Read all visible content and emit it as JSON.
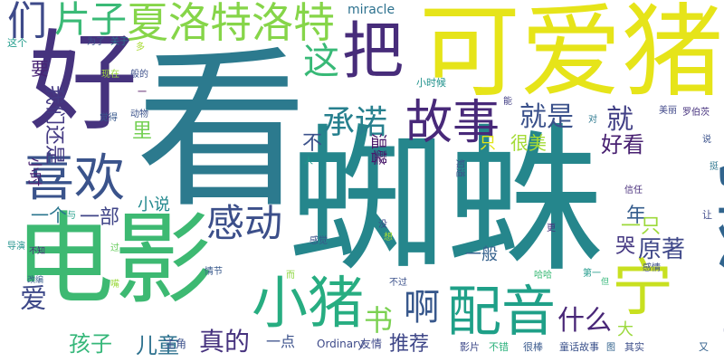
{
  "words": [
    {
      "text": "看",
      "color": "#2c7a8e"
    },
    {
      "text": "蜘蛛",
      "color": "#25868c"
    },
    {
      "text": "电影",
      "color": "#3db972"
    },
    {
      "text": "好",
      "color": "#46337e"
    },
    {
      "text": "可爱猪",
      "color": "#e6e419"
    },
    {
      "text": "时候",
      "color": "#31648d"
    },
    {
      "text": "把",
      "color": "#472c7a"
    },
    {
      "text": "宁",
      "color": "#c8e020"
    },
    {
      "text": "童话",
      "color": "#3d4f8a"
    },
    {
      "text": "小猪",
      "color": "#27ad81"
    },
    {
      "text": "配音",
      "color": "#1fa088"
    },
    {
      "text": "喜欢",
      "color": "#3a538b"
    },
    {
      "text": "故事",
      "color": "#482979"
    },
    {
      "text": "夏洛特洛特",
      "color": "#86d549"
    },
    {
      "text": "感动",
      "color": "#3c4f8a"
    },
    {
      "text": "啊",
      "color": "#38588c"
    },
    {
      "text": "承诺",
      "color": "#27808e"
    },
    {
      "text": "们",
      "color": "#3e4a89"
    },
    {
      "text": "片子",
      "color": "#3aba76"
    },
    {
      "text": "这",
      "color": "#38b977"
    },
    {
      "text": "就是",
      "color": "#3b518b"
    },
    {
      "text": "就",
      "color": "#424086"
    },
    {
      "text": "书",
      "color": "#7ad151"
    },
    {
      "text": "什么",
      "color": "#482677"
    },
    {
      "text": "爱",
      "color": "#3e4989"
    },
    {
      "text": "好看",
      "color": "#482071"
    },
    {
      "text": "原著",
      "color": "#3f4889"
    },
    {
      "text": "真的",
      "color": "#46327e"
    },
    {
      "text": "孩子",
      "color": "#35b779"
    },
    {
      "text": "儿童",
      "color": "#2d718e"
    },
    {
      "text": "一部",
      "color": "#404588"
    },
    {
      "text": "里",
      "color": "#75d054"
    },
    {
      "text": "年",
      "color": "#365d8d"
    },
    {
      "text": "小说",
      "color": "#23898e"
    },
    {
      "text": "我们还是",
      "color": "#443a83"
    },
    {
      "text": "一只",
      "color": "#9dd93b"
    },
    {
      "text": "哭",
      "color": "#453882"
    },
    {
      "text": "推荐",
      "color": "#3f4788"
    },
    {
      "text": "一般",
      "color": "#34618d"
    },
    {
      "text": "不",
      "color": "#3b528b"
    },
    {
      "text": "温馨",
      "color": "#481769"
    },
    {
      "text": "很美",
      "color": "#a5db36"
    },
    {
      "text": "要",
      "color": "#482374"
    },
    {
      "text": "一个",
      "color": "#2a768e"
    },
    {
      "text": "小时",
      "color": "#481f70"
    },
    {
      "text": "一点",
      "color": "#3b518b"
    },
    {
      "text": "大",
      "color": "#9bd93c"
    },
    {
      "text": "只",
      "color": "#e2e418"
    },
    {
      "text": "miracle",
      "color": "#2c718e"
    },
    {
      "text": "Ordinary",
      "color": "#3e4a89"
    },
    {
      "text": "友情",
      "color": "#3e4989"
    },
    {
      "text": "主角",
      "color": "#3c508b"
    },
    {
      "text": "影片",
      "color": "#3e4a89"
    },
    {
      "text": "不错",
      "color": "#2db27d"
    },
    {
      "text": "很棒",
      "color": "#38588c"
    },
    {
      "text": "童话故事",
      "color": "#3b528b"
    },
    {
      "text": "其实",
      "color": "#3d4e8a"
    },
    {
      "text": "又",
      "color": "#34618d"
    },
    {
      "text": "这个",
      "color": "#1e9b8a"
    },
    {
      "text": "为了",
      "color": "#3b518b"
    },
    {
      "text": "关于",
      "color": "#2d708e"
    },
    {
      "text": "多",
      "color": "#a8db34"
    },
    {
      "text": "现在",
      "color": "#9dd93b"
    },
    {
      "text": "般的",
      "color": "#3c4f8a"
    },
    {
      "text": "小时候",
      "color": "#20928c"
    },
    {
      "text": "觉得",
      "color": "#38588c"
    },
    {
      "text": "动物",
      "color": "#3b528b"
    },
    {
      "text": "能",
      "color": "#423f85"
    },
    {
      "text": "美丽",
      "color": "#3f4788"
    },
    {
      "text": "罗伯茨",
      "color": "#46327e"
    },
    {
      "text": "对",
      "color": "#2a778e"
    },
    {
      "text": "说",
      "color": "#3b528b"
    },
    {
      "text": "挺",
      "color": "#2b758e"
    },
    {
      "text": "人",
      "color": "#1f9a8a"
    },
    {
      "text": "知道",
      "color": "#3d4e8a"
    },
    {
      "text": "信任",
      "color": "#472d7b"
    },
    {
      "text": "与",
      "color": "#1f9e89"
    },
    {
      "text": "没",
      "color": "#3e4989"
    },
    {
      "text": "想",
      "color": "#a2da37"
    },
    {
      "text": "更",
      "color": "#46307e"
    },
    {
      "text": "让",
      "color": "#3e4989"
    },
    {
      "text": "导演",
      "color": "#20928c"
    },
    {
      "text": "不知",
      "color": "#482878"
    },
    {
      "text": "过",
      "color": "#67cc5c"
    },
    {
      "text": "感觉",
      "color": "#3a538b"
    },
    {
      "text": "情节",
      "color": "#38598c"
    },
    {
      "text": "哈哈",
      "color": "#3aba76"
    },
    {
      "text": "感情",
      "color": "#3d4d8a"
    },
    {
      "text": "改编",
      "color": "#365c8d"
    },
    {
      "text": "而",
      "color": "#8fd744"
    },
    {
      "text": "不过",
      "color": "#3b518b"
    },
    {
      "text": "第一",
      "color": "#1f9a8a"
    },
    {
      "text": "但",
      "color": "#35b779"
    },
    {
      "text": "嘴",
      "color": "#9bd93c"
    },
    {
      "text": "一",
      "color": "#440154"
    },
    {
      "text": "图",
      "color": "#33638d"
    }
  ]
}
